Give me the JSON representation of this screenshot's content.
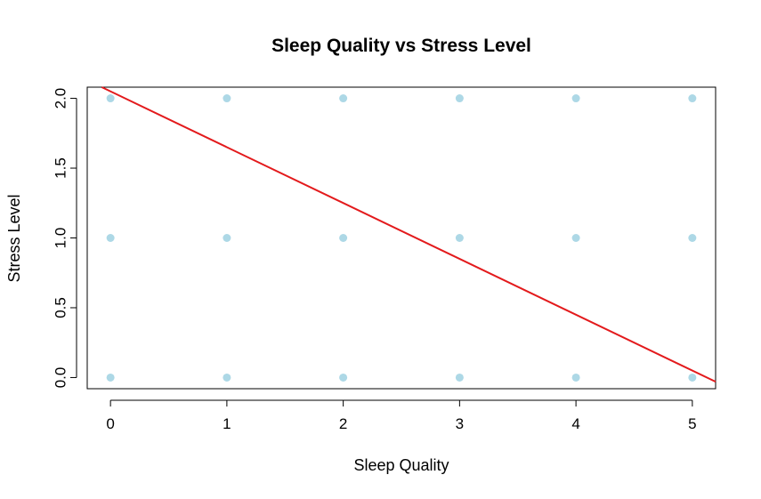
{
  "chart_data": {
    "type": "scatter",
    "title": "Sleep Quality vs Stress Level",
    "xlabel": "Sleep Quality",
    "ylabel": "Stress Level",
    "xlim": [
      -0.2,
      5.2
    ],
    "ylim": [
      -0.08,
      2.08
    ],
    "xticks": [
      0,
      1,
      2,
      3,
      4,
      5
    ],
    "yticks": [
      0.0,
      0.5,
      1.0,
      1.5,
      2.0
    ],
    "xtick_labels": [
      "0",
      "1",
      "2",
      "3",
      "4",
      "5"
    ],
    "ytick_labels": [
      "0.0",
      "0.5",
      "1.0",
      "1.5",
      "2.0"
    ],
    "points": [
      {
        "x": 0,
        "y": 2
      },
      {
        "x": 1,
        "y": 2
      },
      {
        "x": 2,
        "y": 2
      },
      {
        "x": 3,
        "y": 2
      },
      {
        "x": 4,
        "y": 2
      },
      {
        "x": 5,
        "y": 2
      },
      {
        "x": 0,
        "y": 1
      },
      {
        "x": 1,
        "y": 1
      },
      {
        "x": 2,
        "y": 1
      },
      {
        "x": 3,
        "y": 1
      },
      {
        "x": 4,
        "y": 1
      },
      {
        "x": 5,
        "y": 1
      },
      {
        "x": 0,
        "y": 0
      },
      {
        "x": 1,
        "y": 0
      },
      {
        "x": 2,
        "y": 0
      },
      {
        "x": 3,
        "y": 0
      },
      {
        "x": 4,
        "y": 0
      },
      {
        "x": 5,
        "y": 0
      }
    ],
    "regression_line": {
      "intercept": 2.05,
      "slope": -0.4
    },
    "grid": false,
    "point_color": "#add8e6",
    "line_color": "#e31a1c"
  }
}
